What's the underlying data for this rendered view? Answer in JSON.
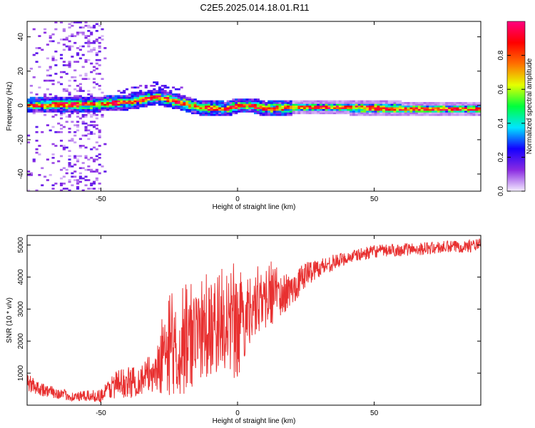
{
  "title": "C2E5.2025.014.18.01.R11",
  "chart_data": [
    {
      "type": "heatmap",
      "xlabel": "Height of straight line (km)",
      "ylabel": "Frequency (Hz)",
      "xlim": [
        -77,
        89
      ],
      "ylim": [
        -50,
        49
      ],
      "xticks": [
        -50,
        0,
        50
      ],
      "yticks": [
        -40,
        -20,
        0,
        20,
        40
      ],
      "colorbar": {
        "label": "Normalized spectral amplitude",
        "range": [
          0,
          1
        ],
        "ticks": [
          0.0,
          0.2,
          0.4,
          0.6,
          0.8
        ],
        "colormap": "rainbow-violet-to-magenta",
        "stops": [
          "#f4ecff",
          "#8a2be2",
          "#1400ff",
          "#00e5ff",
          "#00ff3c",
          "#e5ff00",
          "#ff7000",
          "#ff0000",
          "#ff0080"
        ]
      },
      "ridge": [
        {
          "x": -77,
          "f": 0
        },
        {
          "x": -50,
          "f": 1
        },
        {
          "x": -40,
          "f": 2
        },
        {
          "x": -30,
          "f": 5
        },
        {
          "x": -22,
          "f": 2
        },
        {
          "x": -15,
          "f": -1
        },
        {
          "x": -5,
          "f": -2
        },
        {
          "x": 0,
          "f": 0
        },
        {
          "x": 5,
          "f": 0
        },
        {
          "x": 10,
          "f": -2
        },
        {
          "x": 20,
          "f": -1
        },
        {
          "x": 40,
          "f": -1
        },
        {
          "x": 60,
          "f": -2
        },
        {
          "x": 89,
          "f": -2
        }
      ]
    },
    {
      "type": "line",
      "xlabel": "Height of straight line (km)",
      "ylabel": "SNR (10 * v/v)",
      "xlim": [
        -77,
        89
      ],
      "ylim": [
        0,
        5300
      ],
      "xticks": [
        -50,
        0,
        50
      ],
      "yticks": [
        1000,
        2000,
        3000,
        4000,
        5000
      ],
      "line_color": "#e83030",
      "envelope": [
        {
          "x": -77,
          "mean": 700,
          "amp": 300
        },
        {
          "x": -70,
          "mean": 450,
          "amp": 200
        },
        {
          "x": -60,
          "mean": 260,
          "amp": 150
        },
        {
          "x": -50,
          "mean": 300,
          "amp": 200
        },
        {
          "x": -45,
          "mean": 650,
          "amp": 450
        },
        {
          "x": -40,
          "mean": 700,
          "amp": 500
        },
        {
          "x": -35,
          "mean": 800,
          "amp": 500
        },
        {
          "x": -30,
          "mean": 1100,
          "amp": 700
        },
        {
          "x": -25,
          "mean": 1600,
          "amp": 1400
        },
        {
          "x": -20,
          "mean": 1700,
          "amp": 1400
        },
        {
          "x": -15,
          "mean": 2000,
          "amp": 1400
        },
        {
          "x": -10,
          "mean": 2300,
          "amp": 1400
        },
        {
          "x": -5,
          "mean": 2500,
          "amp": 1400
        },
        {
          "x": 0,
          "mean": 2200,
          "amp": 1600
        },
        {
          "x": 5,
          "mean": 3100,
          "amp": 1000
        },
        {
          "x": 10,
          "mean": 3200,
          "amp": 900
        },
        {
          "x": 15,
          "mean": 3400,
          "amp": 700
        },
        {
          "x": 20,
          "mean": 3600,
          "amp": 500
        },
        {
          "x": 25,
          "mean": 4100,
          "amp": 400
        },
        {
          "x": 30,
          "mean": 4300,
          "amp": 300
        },
        {
          "x": 40,
          "mean": 4600,
          "amp": 200
        },
        {
          "x": 50,
          "mean": 4800,
          "amp": 200
        },
        {
          "x": 60,
          "mean": 4850,
          "amp": 200
        },
        {
          "x": 70,
          "mean": 4900,
          "amp": 200
        },
        {
          "x": 80,
          "mean": 4950,
          "amp": 200
        },
        {
          "x": 89,
          "mean": 5000,
          "amp": 200
        }
      ]
    }
  ]
}
